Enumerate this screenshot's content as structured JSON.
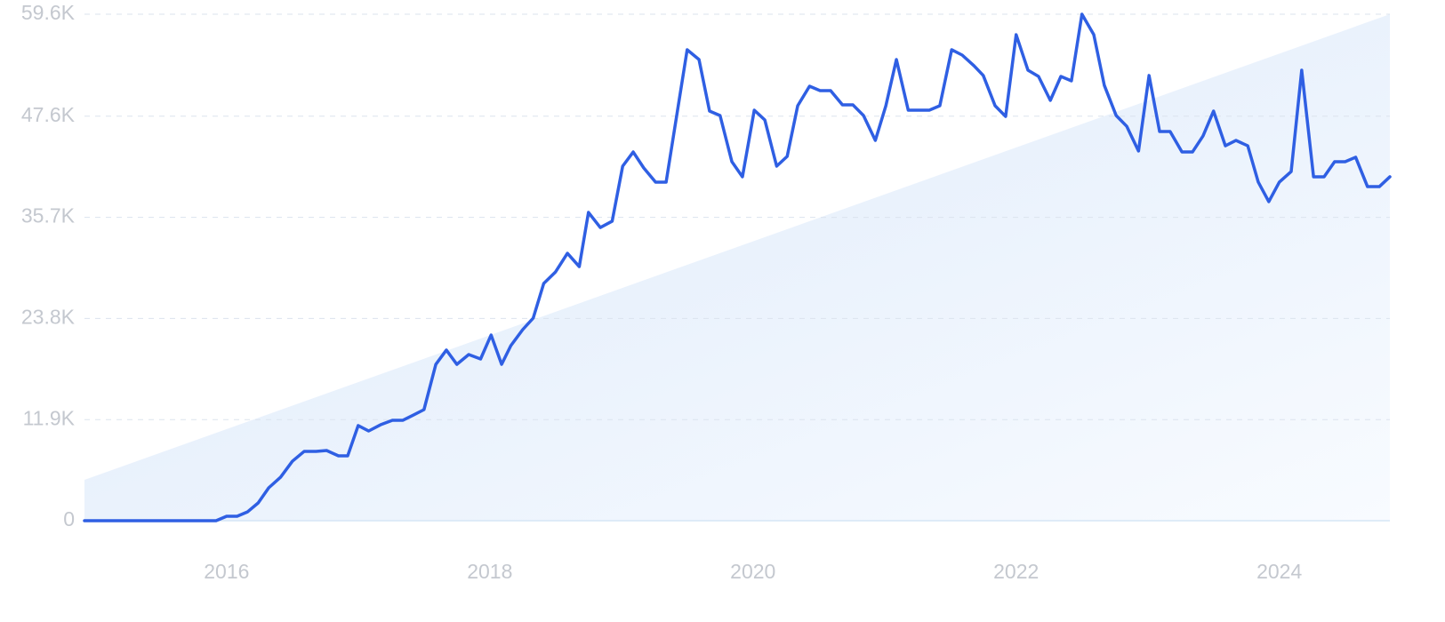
{
  "chart_data": {
    "type": "line",
    "x": [
      2014.92,
      2015.92,
      2016.0,
      2016.08,
      2016.16,
      2016.24,
      2016.32,
      2016.41,
      2016.5,
      2016.59,
      2016.68,
      2016.76,
      2016.85,
      2016.92,
      2017.0,
      2017.08,
      2017.17,
      2017.26,
      2017.34,
      2017.42,
      2017.5,
      2017.59,
      2017.67,
      2017.75,
      2017.84,
      2017.93,
      2018.01,
      2018.09,
      2018.16,
      2018.25,
      2018.33,
      2018.41,
      2018.5,
      2018.59,
      2018.68,
      2018.75,
      2018.84,
      2018.93,
      2019.01,
      2019.09,
      2019.17,
      2019.26,
      2019.34,
      2019.5,
      2019.59,
      2019.67,
      2019.75,
      2019.84,
      2019.92,
      2020.01,
      2020.09,
      2020.18,
      2020.26,
      2020.34,
      2020.43,
      2020.51,
      2020.59,
      2020.68,
      2020.76,
      2020.84,
      2020.93,
      2021.01,
      2021.09,
      2021.18,
      2021.34,
      2021.42,
      2021.51,
      2021.59,
      2021.68,
      2021.75,
      2021.84,
      2021.92,
      2022.0,
      2022.09,
      2022.17,
      2022.26,
      2022.34,
      2022.42,
      2022.5,
      2022.59,
      2022.67,
      2022.76,
      2022.84,
      2022.93,
      2023.01,
      2023.09,
      2023.17,
      2023.26,
      2023.34,
      2023.42,
      2023.5,
      2023.59,
      2023.67,
      2023.76,
      2023.84,
      2023.92,
      2024.0,
      2024.09,
      2024.17,
      2024.26,
      2024.34,
      2024.42,
      2024.5,
      2024.58,
      2024.67,
      2024.76,
      2024.84
    ],
    "series": [
      {
        "color": "#2f5fe3",
        "values": [
          0,
          0,
          520,
          520,
          1050,
          2090,
          3870,
          5120,
          7000,
          8160,
          8160,
          8260,
          7630,
          7630,
          11190,
          10560,
          11290,
          11820,
          11820,
          12440,
          13070,
          18400,
          20080,
          18400,
          19550,
          19030,
          21850,
          18400,
          20600,
          22480,
          23840,
          27920,
          29280,
          31470,
          29900,
          36280,
          34500,
          35240,
          41720,
          43390,
          41510,
          39840,
          39840,
          55420,
          54270,
          48200,
          47680,
          42240,
          40470,
          48310,
          47160,
          41720,
          42870,
          48830,
          51130,
          50610,
          50610,
          48930,
          48930,
          47680,
          44750,
          48830,
          54270,
          48310,
          48310,
          48830,
          55420,
          54790,
          53530,
          52390,
          48830,
          47570,
          57190,
          53010,
          52280,
          49460,
          52280,
          51760,
          59600,
          57190,
          51230,
          47680,
          46420,
          43500,
          52390,
          45800,
          45800,
          43390,
          43390,
          45270,
          48200,
          44120,
          44750,
          44120,
          39840,
          37540,
          39840,
          41090,
          53010,
          40470,
          40470,
          42240,
          42240,
          42770,
          39310,
          39310,
          40470
        ]
      }
    ],
    "xlim": [
      2014.92,
      2024.84
    ],
    "xticks": [
      2016,
      2018,
      2020,
      2022,
      2024
    ],
    "ylim": [
      0,
      59600
    ],
    "yticks": [
      0,
      {
        "value": 11900,
        "label": "11.9K"
      },
      {
        "value": 23800,
        "label": "23.8K"
      },
      {
        "value": 35700,
        "label": "35.7K"
      },
      {
        "value": 47600,
        "label": "47.6K"
      },
      {
        "value": 59600,
        "label": "59.6K"
      }
    ],
    "grid": true
  }
}
